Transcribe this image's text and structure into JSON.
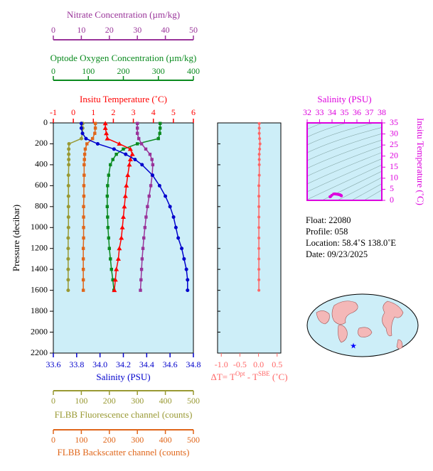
{
  "chart_data": [
    {
      "type": "profile",
      "y_label": "Pressure (decibar)",
      "ylim": [
        0,
        2200
      ],
      "yticks": [
        0,
        200,
        400,
        600,
        800,
        1000,
        1200,
        1400,
        1600,
        1800,
        2000,
        2200
      ],
      "y": [
        5,
        50,
        100,
        150,
        200,
        250,
        300,
        350,
        400,
        500,
        600,
        700,
        800,
        900,
        1000,
        1100,
        1200,
        1300,
        1400,
        1500,
        1600
      ],
      "axes": {
        "nitrate": {
          "label": "Nitrate Concentration (µm/kg)",
          "color": "#993399",
          "lim": [
            0,
            50
          ],
          "ticks": [
            0,
            10,
            20,
            30,
            40,
            50
          ]
        },
        "oxygen": {
          "label": "Optode Oxygen Concentration (µm/kg)",
          "color": "#0a8a1e",
          "lim": [
            0,
            400
          ],
          "ticks": [
            0,
            100,
            200,
            300,
            400
          ]
        },
        "temperature": {
          "label": "Insitu Temperature (˚C)",
          "color": "#ff0000",
          "lim": [
            -1,
            6
          ],
          "ticks": [
            -1,
            0,
            1,
            2,
            3,
            4,
            5,
            6
          ]
        },
        "salinity": {
          "label": "Salinity (PSU)",
          "color": "#0000cc",
          "lim": [
            33.6,
            34.8
          ],
          "ticks": [
            33.6,
            33.8,
            {
              "value": 34,
              "label": "34.0"
            },
            34.2,
            34.4,
            34.6,
            34.8
          ]
        },
        "fluorescence": {
          "label": "FLBB Fluorescence channel (counts)",
          "color": "#999933",
          "lim": [
            0,
            500
          ],
          "ticks": [
            0,
            100,
            200,
            300,
            400,
            500
          ]
        },
        "backscatter": {
          "label": "FLBB Backscatter channel (counts)",
          "color": "#e0661a",
          "lim": [
            0,
            500
          ],
          "ticks": [
            0,
            100,
            200,
            300,
            400,
            500
          ]
        }
      },
      "series": [
        {
          "axis": "fluorescence",
          "color": "#999933",
          "marker": "circle",
          "values": [
            105,
            105,
            104,
            100,
            56,
            55,
            55,
            55,
            55,
            54,
            54,
            54,
            54,
            54,
            54,
            53,
            53,
            53,
            53,
            53,
            53
          ]
        },
        {
          "axis": "backscatter",
          "color": "#e0661a",
          "marker": "square",
          "values": [
            150,
            150,
            148,
            140,
            120,
            114,
            112,
            111,
            110,
            110,
            109,
            109,
            108,
            108,
            108,
            108,
            107,
            107,
            107,
            107,
            107
          ]
        },
        {
          "axis": "oxygen",
          "color": "#0a8a1e",
          "marker": "square",
          "values": [
            305,
            305,
            304,
            300,
            240,
            200,
            180,
            170,
            163,
            158,
            155,
            154,
            154,
            155,
            156,
            158,
            160,
            163,
            166,
            170,
            173
          ]
        },
        {
          "axis": "nitrate",
          "color": "#993399",
          "marker": "square",
          "values": [
            30,
            30,
            30,
            30.5,
            31.5,
            33,
            34.5,
            35.2,
            35.5,
            35.3,
            34.8,
            34.2,
            33.6,
            33.1,
            32.7,
            32.3,
            32,
            31.7,
            31.5,
            31.3,
            31.1
          ]
        },
        {
          "axis": "temperature",
          "color": "#ff0000",
          "marker": "triangle",
          "values": [
            1.6,
            1.6,
            1.65,
            1.7,
            2.3,
            2.85,
            2.95,
            2.85,
            2.8,
            2.72,
            2.65,
            2.6,
            2.55,
            2.5,
            2.45,
            2.4,
            2.3,
            2.25,
            2.15,
            2.1,
            2.05
          ]
        },
        {
          "axis": "salinity",
          "color": "#0000cc",
          "marker": "circle",
          "values": [
            33.84,
            33.84,
            33.85,
            33.88,
            33.98,
            34.12,
            34.22,
            34.3,
            34.36,
            34.45,
            34.51,
            34.56,
            34.6,
            34.63,
            34.65,
            34.67,
            34.7,
            34.72,
            34.74,
            34.75,
            34.75
          ]
        }
      ]
    },
    {
      "type": "delta",
      "x_label": [
        "ΔT= T",
        "Opt",
        " - T",
        "SBE",
        " (˚C)"
      ],
      "color": "#ff6666",
      "xlim": [
        -1.1,
        0.6
      ],
      "xticks": [
        {
          "value": -1,
          "label": "-1.0"
        },
        -0.5,
        {
          "value": 0,
          "label": "0.0"
        },
        0.5
      ],
      "values": [
        0.02,
        0.02,
        0.02,
        0.03,
        0.04,
        0.03,
        0.02,
        0.02,
        0.02,
        0.02,
        0.01,
        0.01,
        0.01,
        0.01,
        0.01,
        0.01,
        0.01,
        0.01,
        0.01,
        0.01,
        0.01
      ]
    },
    {
      "type": "ts",
      "x_label": "Salinity (PSU)",
      "y_label": "Insitu Temperature (˚C)",
      "color": "#dd00dd",
      "xlim": [
        32,
        38
      ],
      "xticks": [
        32,
        33,
        34,
        35,
        36,
        37,
        38
      ],
      "ylim": [
        0,
        35
      ],
      "yticks": [
        0,
        5,
        10,
        15,
        20,
        25,
        30,
        35
      ]
    }
  ],
  "info": [
    "Float:  22080",
    "Profile:  058",
    "Location:  58.4˚S  138.0˚E",
    "Date:  09/23/2025"
  ]
}
